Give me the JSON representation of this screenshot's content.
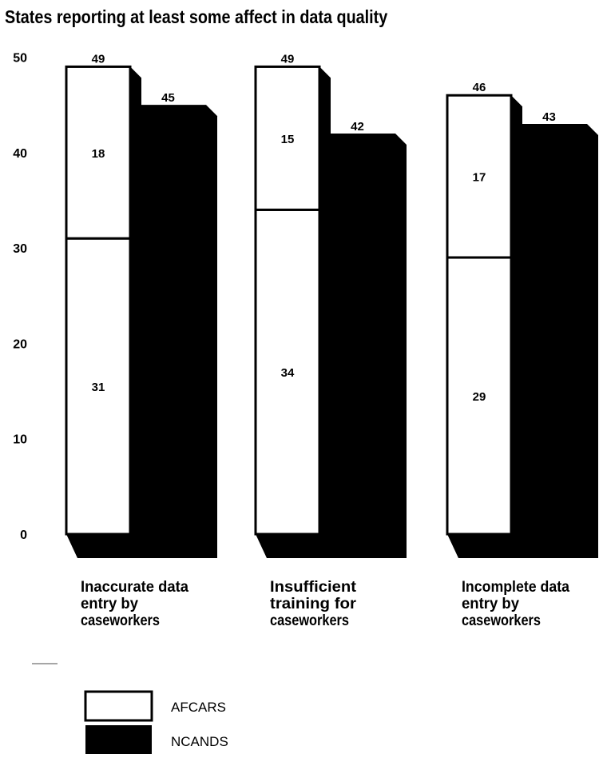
{
  "chart_data": {
    "type": "bar",
    "title": "States reporting at least some affect in data quality",
    "ylim": [
      0,
      50
    ],
    "yticks": [
      0,
      10,
      20,
      30,
      40,
      50
    ],
    "categories": [
      [
        "Inaccurate data",
        "entry by",
        "caseworkers"
      ],
      [
        "Insufficient",
        "training for",
        "caseworkers"
      ],
      [
        "Incomplete data",
        "entry by",
        "caseworkers"
      ]
    ],
    "series": [
      {
        "name": "AFCARS",
        "color": "#ffffff",
        "stacked": true,
        "segments": [
          {
            "values": [
              31,
              34,
              29
            ]
          },
          {
            "values": [
              18,
              15,
              17
            ]
          }
        ],
        "totals": [
          49,
          49,
          46
        ]
      },
      {
        "name": "NCANDS",
        "color": "#000000",
        "values": [
          45,
          42,
          43
        ]
      }
    ],
    "legend": {
      "position": "bottom-left"
    },
    "grid": false
  }
}
